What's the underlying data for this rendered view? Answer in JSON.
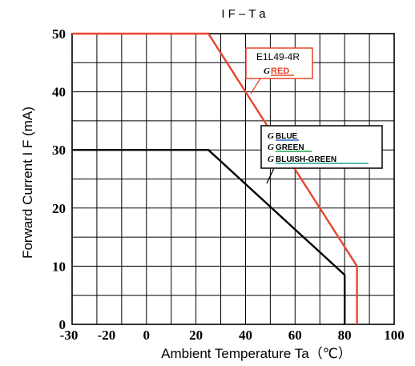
{
  "chart_data": {
    "type": "line",
    "title": "I F – T a",
    "xlabel": "Ambient Temperature  Ta（℃）",
    "ylabel": "Forward Current  I F  (mA)",
    "xlim": [
      -30,
      100
    ],
    "ylim": [
      0,
      50
    ],
    "x_ticks": [
      "-30",
      "-20",
      "0",
      "20",
      "40",
      "60",
      "80",
      "100"
    ],
    "x_tick_values": [
      -30,
      -20,
      0,
      20,
      40,
      60,
      80,
      100
    ],
    "y_ticks": [
      "0",
      "10",
      "20",
      "30",
      "40",
      "50"
    ],
    "y_tick_values": [
      0,
      10,
      20,
      30,
      40,
      50
    ],
    "grid": true,
    "series": [
      {
        "name": "E1L49-4R RED",
        "color": "#e8452c",
        "points": [
          [
            -30,
            50
          ],
          [
            25,
            50
          ],
          [
            85,
            10
          ],
          [
            85,
            0
          ]
        ]
      },
      {
        "name": "BLUE / GREEN / BLUISH-GREEN",
        "color": "#000000",
        "points": [
          [
            -30,
            30
          ],
          [
            25,
            30
          ],
          [
            80,
            8.5
          ],
          [
            80,
            0
          ]
        ]
      }
    ],
    "annotations": {
      "red_box": {
        "model": "E1L49-4R",
        "label": "RED",
        "label_color": "#e8452c",
        "border_color": "#e8452c"
      },
      "black_box": {
        "labels": [
          {
            "text": "BLUE",
            "underline_color": "#2f5bd3"
          },
          {
            "text": "GREEN",
            "underline_color": "#1fa24a"
          },
          {
            "text": "BLUISH-GREEN",
            "underline_color": "#19a6a0"
          }
        ],
        "border_color": "#000000"
      },
      "brand_mark": "G"
    }
  }
}
